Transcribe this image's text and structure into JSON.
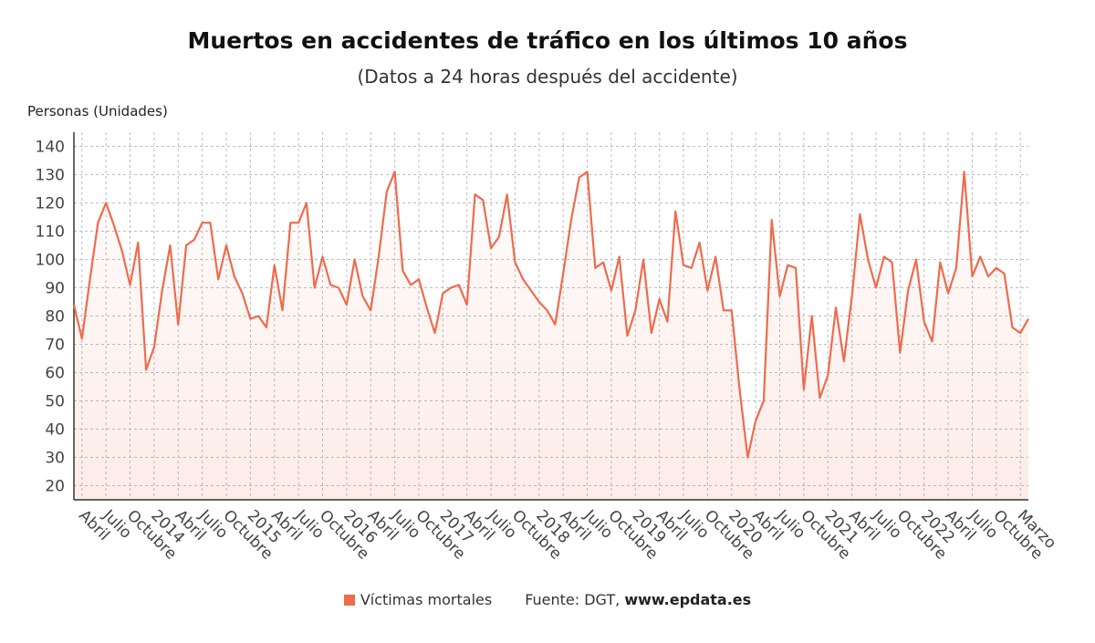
{
  "chart_data": {
    "type": "line",
    "title": "Muertos en accidentes de tráfico en los últimos 10 años",
    "subtitle": "(Datos a 24 horas después del accidente)",
    "ylabel": "Personas (Unidades)",
    "ylim": [
      15,
      145
    ],
    "yticks": [
      20,
      30,
      40,
      50,
      60,
      70,
      80,
      90,
      100,
      110,
      120,
      130,
      140
    ],
    "grid": true,
    "legend_position": "bottom",
    "color": "#ee6b4d",
    "x_start": "2013-03",
    "x_end": "2023-03",
    "xtick_labels": [
      "Abril",
      "Julio",
      "Octubre",
      "2014",
      "Abril",
      "Julio",
      "Octubre",
      "2015",
      "Abril",
      "Julio",
      "Octubre",
      "2016",
      "Abril",
      "Julio",
      "Octubre",
      "2017",
      "Abril",
      "Julio",
      "Octubre",
      "2018",
      "Abril",
      "Julio",
      "Octubre",
      "2019",
      "Abril",
      "Julio",
      "Octubre",
      "2020",
      "Abril",
      "Julio",
      "Octubre",
      "2021",
      "Abril",
      "Julio",
      "Octubre",
      "2022",
      "Abril",
      "Julio",
      "Octubre",
      "Marzo"
    ],
    "series": [
      {
        "name": "Víctimas mortales",
        "values": [
          84,
          72,
          93,
          113,
          120,
          112,
          103,
          91,
          106,
          61,
          69,
          89,
          105,
          77,
          105,
          107,
          113,
          113,
          93,
          105,
          94,
          88,
          79,
          80,
          76,
          98,
          82,
          113,
          113,
          120,
          90,
          101,
          91,
          90,
          84,
          100,
          87,
          82,
          101,
          124,
          131,
          96,
          91,
          93,
          83,
          74,
          88,
          90,
          91,
          84,
          123,
          121,
          104,
          108,
          123,
          99,
          93,
          89,
          85,
          82,
          77,
          95,
          114,
          129,
          131,
          97,
          99,
          89,
          101,
          73,
          82,
          100,
          74,
          86,
          78,
          117,
          98,
          97,
          106,
          89,
          101,
          82,
          82,
          54,
          30,
          43,
          50,
          114,
          87,
          98,
          97,
          54,
          80,
          51,
          59,
          83,
          64,
          87,
          116,
          100,
          90,
          101,
          99,
          67,
          89,
          100,
          78,
          71,
          99,
          88,
          97,
          131,
          94,
          101,
          94,
          97,
          95,
          76,
          74,
          79
        ]
      }
    ]
  },
  "legend": {
    "items": [
      {
        "label": "Víctimas mortales",
        "color": "#ee6b4d"
      }
    ],
    "source_prefix": "Fuente: DGT, ",
    "source_site": "www.epdata.es"
  }
}
